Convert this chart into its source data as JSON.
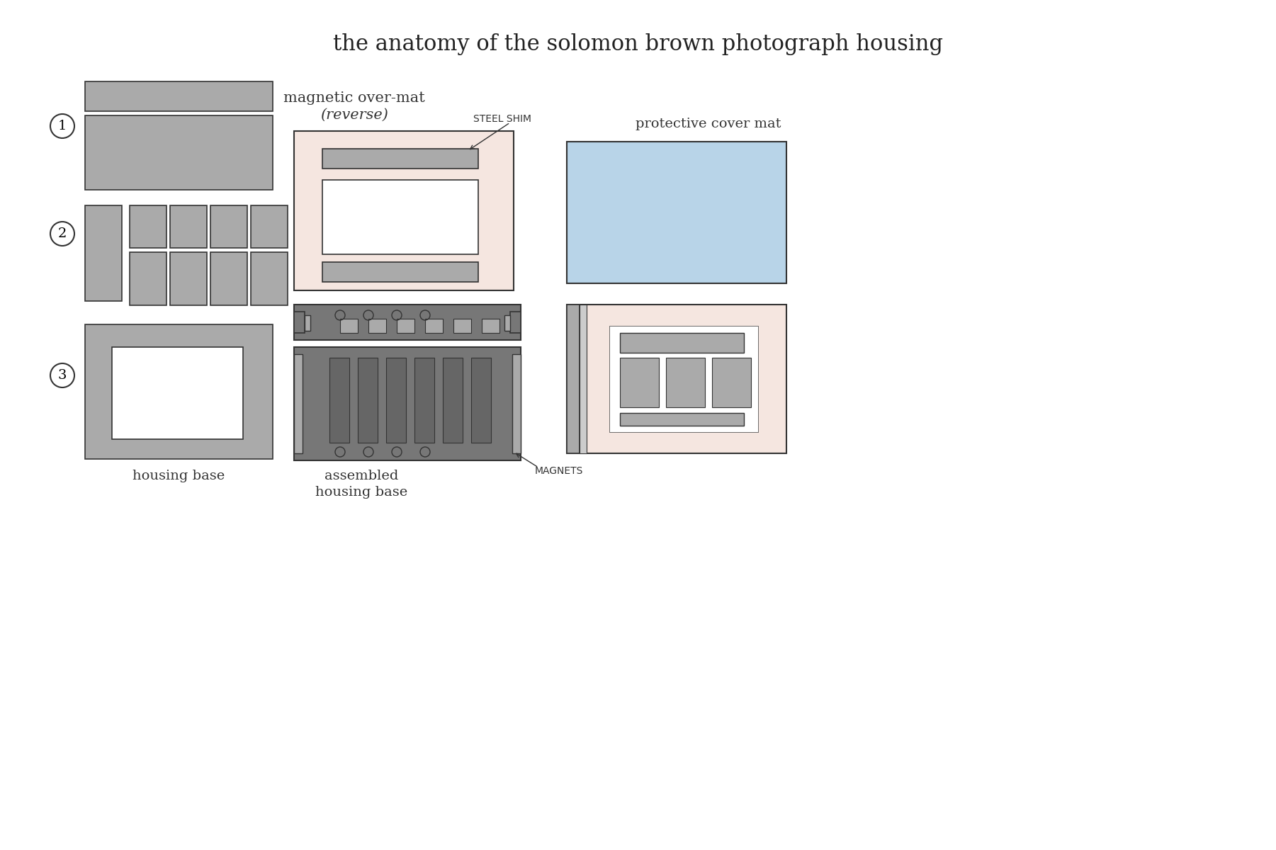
{
  "title": "the anatomy of the solomon brown photograph housing",
  "bg_color": "#ffffff",
  "gray_fill": "#aaaaaa",
  "dark_gray": "#777777",
  "darker_gray": "#666666",
  "pink": "#f5e6e0",
  "blue": "#b8d4e8",
  "stroke": "#333333",
  "label1": "1",
  "label2": "2",
  "label3": "3",
  "lbl_housing_base": "housing base",
  "lbl_mag_overmat": "magnetic over-mat",
  "lbl_reverse": "(reverse)",
  "lbl_steel_shim": "STEEL SHIM",
  "lbl_protective": "protective cover mat",
  "lbl_assembled1": "assembled",
  "lbl_assembled2": "housing base",
  "lbl_magnets": "MAGNETS"
}
